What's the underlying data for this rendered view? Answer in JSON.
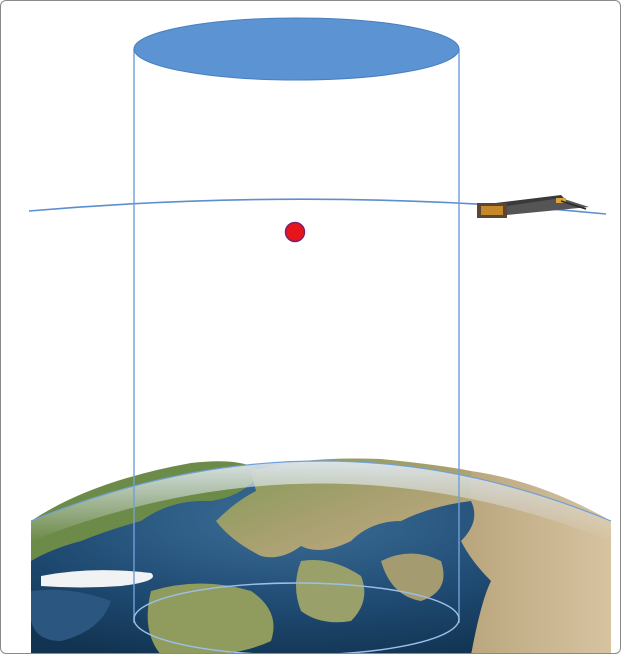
{
  "figure": {
    "elements": [
      "earth",
      "satellite",
      "orbit-line",
      "observation-cylinder",
      "target-point"
    ]
  },
  "colors": {
    "cylinder_top_fill": "#5b93d3",
    "cylinder_line": "#6fa0d8",
    "orbit_line": "#5b8fcf",
    "target_point": "#e8141b",
    "target_point_outline": "#7d1f6b",
    "ocean": "#234f78",
    "land_green": "#6f8a4a",
    "land_tan": "#b8a27a",
    "haze": "#c9d8e6"
  }
}
